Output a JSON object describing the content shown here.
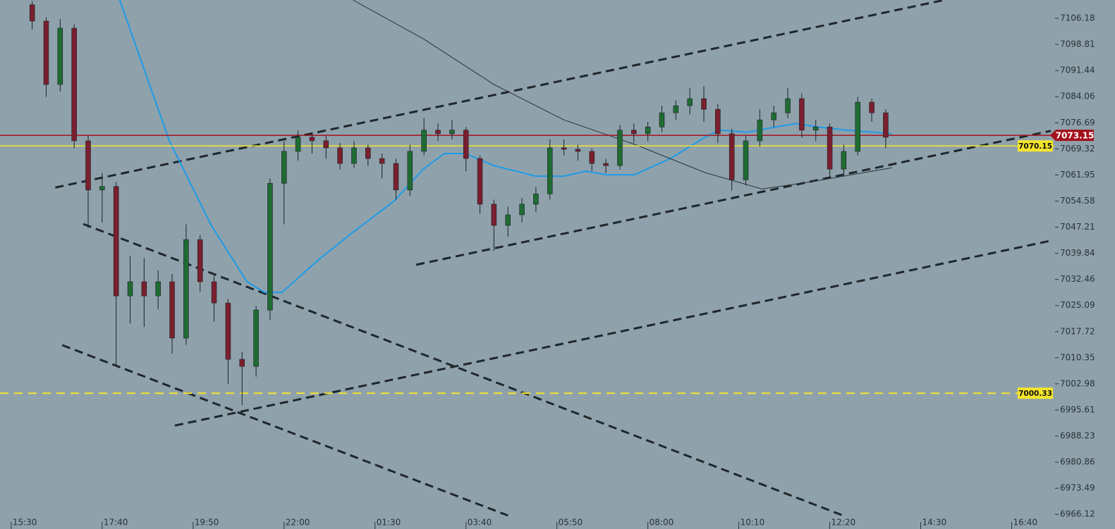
{
  "chart_data": {
    "type": "candlestick",
    "background": "#8fa2ac",
    "up_color": "#1f6b33",
    "down_color": "#7a1f2e",
    "xlim": [
      -1.6,
      149.1
    ],
    "ylim": [
      6961.99,
      7111.35
    ],
    "xticks": [
      {
        "value": 0,
        "label": "15:30"
      },
      {
        "value": 13,
        "label": "17:40"
      },
      {
        "value": 26,
        "label": "19:50"
      },
      {
        "value": 39,
        "label": "22:00"
      },
      {
        "value": 52,
        "label": "01:30"
      },
      {
        "value": 65,
        "label": "03:40"
      },
      {
        "value": 78,
        "label": "05:50"
      },
      {
        "value": 91,
        "label": "08:00"
      },
      {
        "value": 104,
        "label": "10:10"
      },
      {
        "value": 117,
        "label": "12:20"
      },
      {
        "value": 130,
        "label": "14:30"
      },
      {
        "value": 143,
        "label": "16:40"
      }
    ],
    "yticks": [
      7106.18,
      7098.81,
      7091.44,
      7084.06,
      7076.69,
      7069.32,
      7061.95,
      7054.58,
      7047.21,
      7039.84,
      7032.46,
      7025.09,
      7017.72,
      7010.35,
      7002.98,
      6995.61,
      6988.23,
      6980.86,
      6973.49,
      6966.12
    ],
    "x": [
      3,
      5,
      7,
      9,
      11,
      13,
      15,
      17,
      19,
      21,
      23,
      25,
      27,
      29,
      31,
      33,
      35,
      37,
      39,
      41,
      43,
      45,
      47,
      49,
      51,
      53,
      55,
      57,
      59,
      61,
      63,
      65,
      67,
      69,
      71,
      73,
      75,
      77,
      79,
      81,
      83,
      85,
      87,
      89,
      91,
      93,
      95,
      97,
      99,
      101,
      103,
      105,
      107,
      109,
      111,
      113,
      115,
      117,
      119,
      121,
      123,
      125
    ],
    "ohlc": [
      [
        7110.0,
        7111.0,
        7103.0,
        7105.4
      ],
      [
        7105.4,
        7106.5,
        7084.0,
        7087.5
      ],
      [
        7087.5,
        7106.0,
        7085.5,
        7103.4
      ],
      [
        7103.4,
        7104.5,
        7069.5,
        7071.6
      ],
      [
        7071.6,
        7073.0,
        7047.0,
        7057.7
      ],
      [
        7057.7,
        7062.5,
        7048.5,
        7058.7
      ],
      [
        7058.7,
        7060.0,
        7008.0,
        7027.8
      ],
      [
        7027.8,
        7039.0,
        7020.0,
        7031.8
      ],
      [
        7031.8,
        7038.5,
        7019.0,
        7027.8
      ],
      [
        7027.8,
        7035.0,
        7024.0,
        7031.8
      ],
      [
        7031.8,
        7034.0,
        7011.5,
        7015.9
      ],
      [
        7015.9,
        7048.0,
        7014.0,
        7043.7
      ],
      [
        7043.7,
        7045.0,
        7029.0,
        7031.8
      ],
      [
        7031.8,
        7033.5,
        7020.5,
        7025.8
      ],
      [
        7025.8,
        7027.0,
        7003.0,
        7009.9
      ],
      [
        7009.9,
        7012.0,
        6997.0,
        7007.9
      ],
      [
        7007.9,
        7025.0,
        7005.0,
        7023.8
      ],
      [
        7023.8,
        7061.0,
        7021.0,
        7059.6
      ],
      [
        7059.6,
        7071.5,
        7048.0,
        7068.6
      ],
      [
        7068.6,
        7074.5,
        7066.0,
        7072.6
      ],
      [
        7072.6,
        7074.0,
        7068.0,
        7071.6
      ],
      [
        7071.6,
        7073.0,
        7066.5,
        7069.6
      ],
      [
        7069.6,
        7071.0,
        7063.5,
        7065.2
      ],
      [
        7065.2,
        7071.5,
        7064.0,
        7069.6
      ],
      [
        7069.6,
        7070.5,
        7064.5,
        7066.6
      ],
      [
        7066.6,
        7068.0,
        7061.0,
        7065.2
      ],
      [
        7065.2,
        7066.5,
        7055.0,
        7057.7
      ],
      [
        7057.7,
        7070.5,
        7056.0,
        7068.6
      ],
      [
        7068.6,
        7078.0,
        7067.5,
        7074.6
      ],
      [
        7074.6,
        7076.5,
        7071.5,
        7073.6
      ],
      [
        7073.6,
        7077.5,
        7072.0,
        7074.6
      ],
      [
        7074.6,
        7075.5,
        7063.0,
        7066.6
      ],
      [
        7066.6,
        7067.5,
        7051.0,
        7053.7
      ],
      [
        7053.7,
        7055.0,
        7040.5,
        7047.7
      ],
      [
        7047.7,
        7053.0,
        7044.5,
        7050.7
      ],
      [
        7050.7,
        7055.5,
        7048.5,
        7053.7
      ],
      [
        7053.7,
        7058.5,
        7051.5,
        7056.6
      ],
      [
        7056.6,
        7072.0,
        7055.0,
        7069.6
      ],
      [
        7069.6,
        7072.0,
        7067.5,
        7069.2
      ],
      [
        7069.2,
        7070.5,
        7066.0,
        7068.6
      ],
      [
        7068.6,
        7069.5,
        7063.0,
        7065.2
      ],
      [
        7065.2,
        7066.5,
        7062.5,
        7064.6
      ],
      [
        7064.6,
        7076.0,
        7063.5,
        7074.6
      ],
      [
        7074.6,
        7076.5,
        7071.0,
        7073.6
      ],
      [
        7073.6,
        7077.0,
        7071.5,
        7075.5
      ],
      [
        7075.5,
        7081.5,
        7074.0,
        7079.5
      ],
      [
        7079.5,
        7083.0,
        7077.5,
        7081.5
      ],
      [
        7081.5,
        7086.5,
        7079.0,
        7083.5
      ],
      [
        7083.5,
        7087.0,
        7077.0,
        7080.5
      ],
      [
        7080.5,
        7082.0,
        7071.0,
        7073.6
      ],
      [
        7073.6,
        7075.0,
        7057.5,
        7060.6
      ],
      [
        7060.6,
        7073.0,
        7059.0,
        7071.6
      ],
      [
        7071.6,
        7080.5,
        7070.0,
        7077.5
      ],
      [
        7077.5,
        7081.5,
        7075.5,
        7079.5
      ],
      [
        7079.5,
        7086.5,
        7078.0,
        7083.5
      ],
      [
        7083.5,
        7085.0,
        7072.5,
        7074.6
      ],
      [
        7074.6,
        7077.5,
        7071.5,
        7075.5
      ],
      [
        7075.5,
        7076.5,
        7061.0,
        7063.6
      ],
      [
        7063.6,
        7070.5,
        7062.0,
        7068.6
      ],
      [
        7068.6,
        7084.0,
        7067.5,
        7082.5
      ],
      [
        7082.5,
        7083.5,
        7077.0,
        7079.5
      ],
      [
        7079.5,
        7080.5,
        7069.5,
        7072.6
      ]
    ],
    "averages": [
      {
        "color": "#1e9be6",
        "width": 2,
        "x": [
          15.5,
          22.6,
          28.6,
          33.7,
          36.2,
          38.7,
          43.8,
          48.8,
          54.8,
          58.9,
          61.9,
          64.9,
          69.0,
          75.0,
          79.0,
          82.1,
          85.1,
          89.1,
          94.2,
          99.2,
          101.2,
          105.2,
          109.3,
          112.3,
          115.3,
          119.4,
          125.9
        ],
        "y": [
          7111.4,
          7071.6,
          7047.7,
          7031.8,
          7028.8,
          7028.8,
          7037.8,
          7045.7,
          7054.7,
          7063.6,
          7068.0,
          7068.0,
          7064.6,
          7061.6,
          7061.6,
          7063.0,
          7062.0,
          7062.0,
          7066.6,
          7072.6,
          7074.6,
          7074.0,
          7075.5,
          7076.5,
          7075.5,
          7074.6,
          7073.6
        ]
      },
      {
        "color": "#2b3338",
        "width": 1,
        "x": [
          48.8,
          58.9,
          69.0,
          79.0,
          89.1,
          99.2,
          107.3,
          114.3,
          125.9
        ],
        "y": [
          7111.4,
          7100.4,
          7087.5,
          7077.5,
          7070.6,
          7062.6,
          7058.0,
          7060.0,
          7064.0
        ]
      }
    ],
    "trendline_color": "#1f272c",
    "trendlines": [
      {
        "x": [
          6.3,
          133.5
        ],
        "y": [
          7058.4,
          7111.4
        ]
      },
      {
        "x": [
          10.3,
          118.9
        ],
        "y": [
          7048.1,
          6965.8
        ]
      },
      {
        "x": [
          7.3,
          71.0
        ],
        "y": [
          7013.9,
          6965.8
        ]
      },
      {
        "x": [
          23.4,
          148.4
        ],
        "y": [
          6991.2,
          7043.3
        ]
      },
      {
        "x": [
          57.9,
          148.6
        ],
        "y": [
          7036.6,
          7074.4
        ]
      }
    ],
    "levels": [
      {
        "value": 7070.15,
        "color": "#f5e52a",
        "text_color": "#111111",
        "dashed": false
      },
      {
        "value": 7000.33,
        "color": "#f5e52a",
        "text_color": "#111111",
        "dashed": true
      },
      {
        "value": 7073.15,
        "color": "#a4111c",
        "text_color": "#ffffff",
        "dashed": false
      }
    ]
  }
}
